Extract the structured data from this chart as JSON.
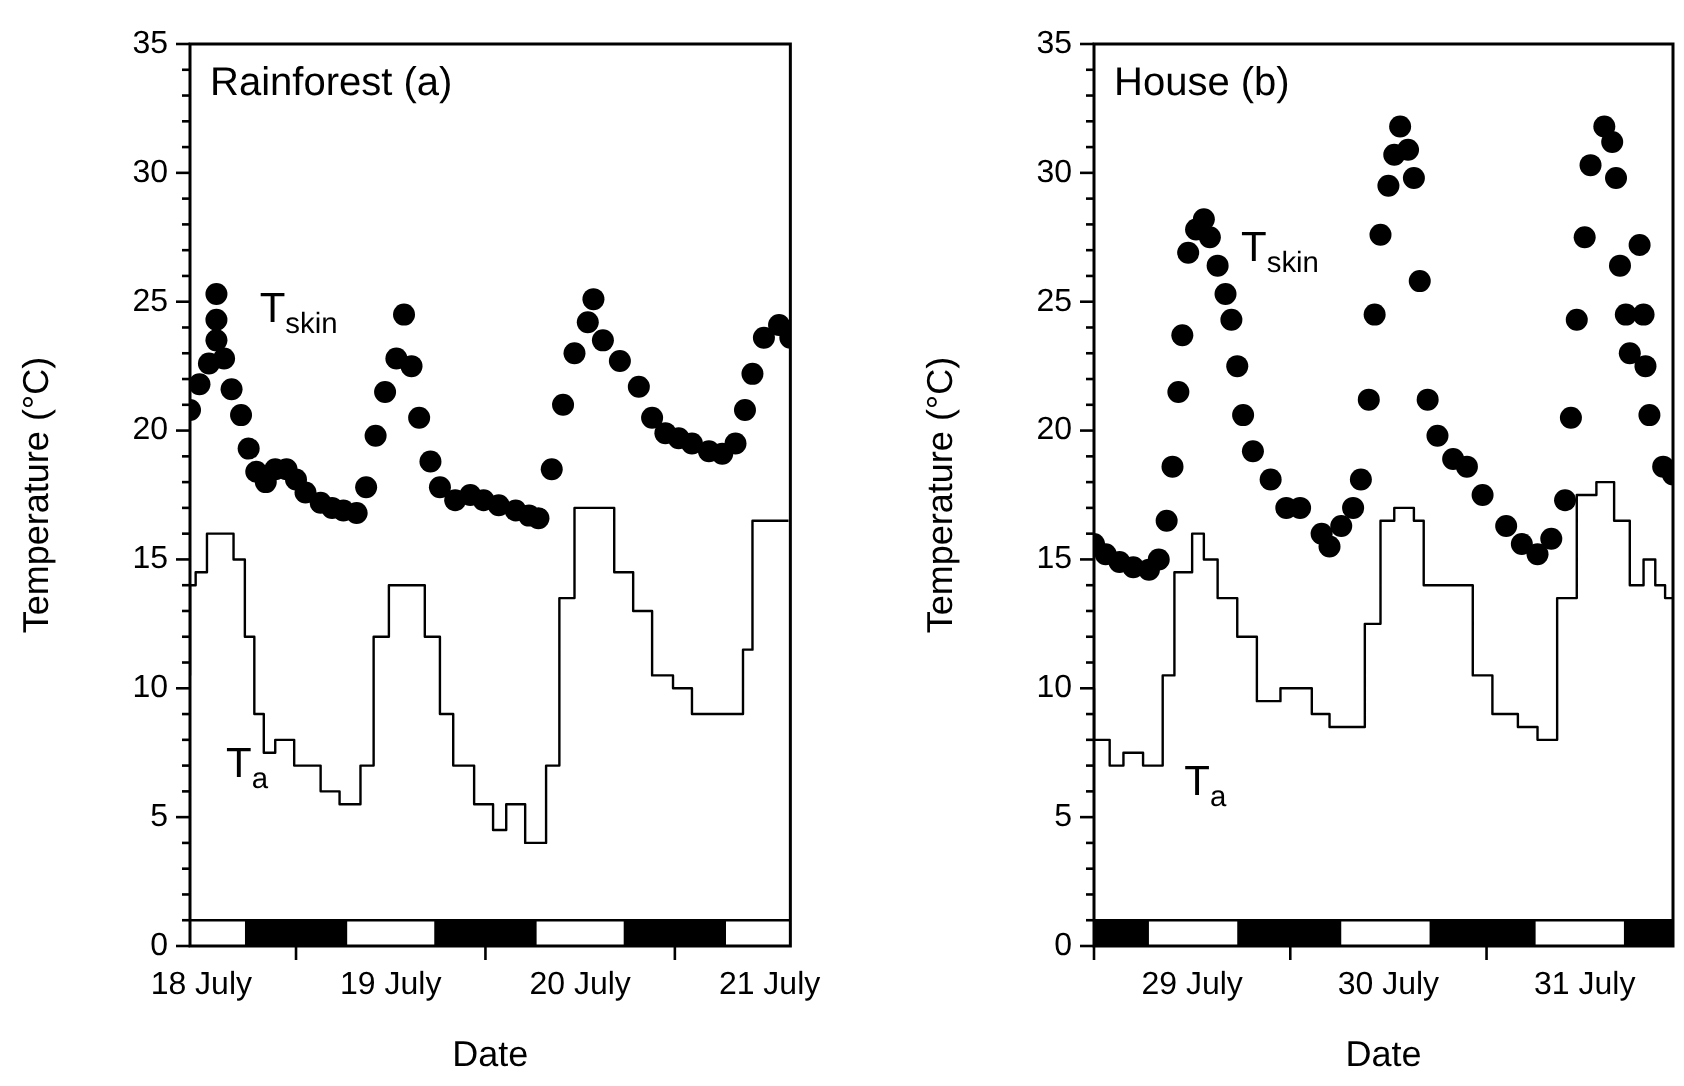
{
  "chart_data": [
    {
      "type": "scatter",
      "title": "Rainforest (a)",
      "xlabel": "Date",
      "ylabel": "Temperature (°C)",
      "xlim": [
        "--07-18T10:34",
        "--07-21T14:38"
      ],
      "xticks": [
        {
          "value": "--07-18T12:00",
          "label": "18 July"
        },
        {
          "value": "--07-19",
          "label": null
        },
        {
          "value": "--07-19T12:00",
          "label": "19 July"
        },
        {
          "value": "--07-20",
          "label": null
        },
        {
          "value": "--07-20T12:00",
          "label": "20 July"
        },
        {
          "value": "--07-21",
          "label": null
        },
        {
          "value": "--07-21T12:00",
          "label": "21 July"
        }
      ],
      "ylim": [
        0,
        35
      ],
      "yticks": [
        0,
        {
          "value": 1,
          "label": null
        },
        {
          "value": 2,
          "label": null
        },
        {
          "value": 3,
          "label": null
        },
        {
          "value": 4,
          "label": null
        },
        5,
        {
          "value": 6,
          "label": null
        },
        {
          "value": 7,
          "label": null
        },
        {
          "value": 8,
          "label": null
        },
        {
          "value": 9,
          "label": null
        },
        10,
        {
          "value": 11,
          "label": null
        },
        {
          "value": 12,
          "label": null
        },
        {
          "value": 13,
          "label": null
        },
        {
          "value": 14,
          "label": null
        },
        15,
        {
          "value": 16,
          "label": null
        },
        {
          "value": 17,
          "label": null
        },
        {
          "value": 18,
          "label": null
        },
        {
          "value": 19,
          "label": null
        },
        20,
        {
          "value": 21,
          "label": null
        },
        {
          "value": 22,
          "label": null
        },
        {
          "value": 23,
          "label": null
        },
        {
          "value": 24,
          "label": null
        },
        25,
        {
          "value": 26,
          "label": null
        },
        {
          "value": 27,
          "label": null
        },
        {
          "value": 28,
          "label": null
        },
        {
          "value": 29,
          "label": null
        },
        30,
        {
          "value": 31,
          "label": null
        },
        {
          "value": 32,
          "label": null
        },
        {
          "value": 33,
          "label": null
        },
        {
          "value": 34,
          "label": null
        },
        35
      ],
      "grid": false,
      "legend": false,
      "ref_lines": [
        {
          "axis": "y",
          "value": 1,
          "color": "#000000"
        }
      ],
      "series": [
        {
          "type": "area",
          "color": "#000000",
          "x": [
            "--07-18T17:31",
            "--07-18T17:31",
            "--07-19T06:29",
            "--07-19T06:29",
            "--07-19T17:31",
            "--07-19T17:31",
            "--07-20T06:29",
            "--07-20T06:29",
            "--07-20T17:31",
            "--07-20T17:31",
            "--07-21T06:29",
            "--07-21T06:29"
          ],
          "values": [
            0,
            1,
            1,
            0,
            0,
            1,
            1,
            0,
            0,
            1,
            1,
            0
          ]
        },
        {
          "name": "T$_{skin}$",
          "marker": "circle",
          "color": "#000000",
          "x": [
            "--07-18T10:34",
            "--07-18T11:46",
            "--07-18T12:58",
            "--07-18T13:55",
            "--07-18T13:55",
            "--07-18T13:55",
            "--07-18T14:53",
            "--07-18T15:50",
            "--07-18T17:02",
            "--07-18T18:00",
            "--07-18T18:58",
            "--07-18T20:10",
            "--07-18T21:22",
            "--07-18T22:48",
            "--07-19T00:00",
            "--07-19T01:12",
            "--07-19T03:07",
            "--07-19T04:34",
            "--07-19T06:00",
            "--07-19T07:41",
            "--07-19T08:53",
            "--07-19T10:05",
            "--07-19T11:17",
            "--07-19T12:43",
            "--07-19T13:41",
            "--07-19T14:38",
            "--07-19T15:36",
            "--07-19T17:02",
            "--07-19T18:14",
            "--07-19T20:10",
            "--07-19T22:05",
            "--07-19T23:46",
            "--07-20T01:41",
            "--07-20T03:50",
            "--07-20T05:31",
            "--07-20T06:43",
            "--07-20T08:24",
            "--07-20T09:50",
            "--07-20T11:17",
            "--07-20T12:58",
            "--07-20T13:41",
            "--07-20T14:53",
            "--07-20T17:02",
            "--07-20T19:26",
            "--07-20T21:07",
            "--07-20T22:48",
            "--07-21T00:29",
            "--07-21T02:10",
            "--07-21T04:19",
            "--07-21T06:00",
            "--07-21T07:41",
            "--07-21T08:53",
            "--07-21T09:50",
            "--07-21T11:17",
            "--07-21T13:12",
            "--07-21T14:38"
          ],
          "values": [
            20.8,
            21.8,
            22.6,
            23.5,
            24.3,
            25.3,
            22.8,
            21.6,
            20.6,
            19.3,
            18.4,
            18.0,
            18.5,
            18.5,
            18.1,
            17.6,
            17.2,
            17.0,
            16.9,
            16.8,
            17.8,
            19.8,
            21.5,
            22.8,
            24.5,
            22.5,
            20.5,
            18.8,
            17.8,
            17.3,
            17.5,
            17.3,
            17.1,
            16.9,
            16.7,
            16.6,
            18.5,
            21.0,
            23.0,
            24.2,
            25.1,
            23.5,
            22.7,
            21.7,
            20.5,
            19.9,
            19.7,
            19.5,
            19.2,
            19.1,
            19.5,
            20.8,
            22.2,
            23.6,
            24.1,
            23.6
          ]
        },
        {
          "name": "T$_{a}$",
          "type": "step",
          "marker": "none",
          "color": "#000000",
          "x": [
            "--07-18T10:34",
            "--07-18T11:17",
            "--07-18T12:43",
            "--07-18T14:24",
            "--07-18T16:05",
            "--07-18T17:31",
            "--07-18T18:43",
            "--07-18T19:55",
            "--07-18T21:22",
            "--07-18T23:46",
            "--07-19T03:07",
            "--07-19T05:31",
            "--07-19T08:10",
            "--07-19T09:50",
            "--07-19T11:46",
            "--07-19T13:41",
            "--07-19T16:19",
            "--07-19T18:14",
            "--07-19T19:55",
            "--07-19T22:34",
            "--07-20T00:58",
            "--07-20T02:38",
            "--07-20T05:02",
            "--07-20T07:41",
            "--07-20T09:22",
            "--07-20T11:17",
            "--07-20T14:24",
            "--07-20T16:19",
            "--07-20T18:43",
            "--07-20T21:07",
            "--07-20T23:46",
            "--07-21T02:10",
            "--07-21T04:48",
            "--07-21T08:38",
            "--07-21T09:50",
            "--07-21T11:46",
            "--07-21T14:24"
          ],
          "values": [
            10.5,
            14,
            14.5,
            16,
            16,
            15,
            12,
            9,
            7.5,
            8,
            7,
            6,
            5.5,
            7,
            12,
            14,
            14,
            12,
            9,
            7,
            5.5,
            4.5,
            5.5,
            4,
            7,
            13.5,
            17,
            17,
            14.5,
            13,
            10.5,
            10,
            9,
            9,
            11.5,
            16.5,
            16.5
          ]
        }
      ]
    },
    {
      "type": "scatter",
      "title": "House (b)",
      "xlabel": "Date",
      "ylabel": "Temperature (°C)",
      "xlim": [
        "--07-29T00:00",
        "--07-31T22:48"
      ],
      "xticks": [
        {
          "value": "--07-29",
          "label": null
        },
        {
          "value": "--07-29T12:00",
          "label": "29 July"
        },
        {
          "value": "--07-30",
          "label": null
        },
        {
          "value": "--07-30T12:00",
          "label": "30 July"
        },
        {
          "value": "--07-31",
          "label": null
        },
        {
          "value": "--07-31T12:00",
          "label": "31 July"
        }
      ],
      "ylim": [
        0,
        35
      ],
      "yticks": [
        0,
        {
          "value": 1,
          "label": null
        },
        {
          "value": 2,
          "label": null
        },
        {
          "value": 3,
          "label": null
        },
        {
          "value": 4,
          "label": null
        },
        5,
        {
          "value": 6,
          "label": null
        },
        {
          "value": 7,
          "label": null
        },
        {
          "value": 8,
          "label": null
        },
        {
          "value": 9,
          "label": null
        },
        10,
        {
          "value": 11,
          "label": null
        },
        {
          "value": 12,
          "label": null
        },
        {
          "value": 13,
          "label": null
        },
        {
          "value": 14,
          "label": null
        },
        15,
        {
          "value": 16,
          "label": null
        },
        {
          "value": 17,
          "label": null
        },
        {
          "value": 18,
          "label": null
        },
        {
          "value": 19,
          "label": null
        },
        20,
        {
          "value": 21,
          "label": null
        },
        {
          "value": 22,
          "label": null
        },
        {
          "value": 23,
          "label": null
        },
        {
          "value": 24,
          "label": null
        },
        25,
        {
          "value": 26,
          "label": null
        },
        {
          "value": 27,
          "label": null
        },
        {
          "value": 28,
          "label": null
        },
        {
          "value": 29,
          "label": null
        },
        30,
        {
          "value": 31,
          "label": null
        },
        {
          "value": 32,
          "label": null
        },
        {
          "value": 33,
          "label": null
        },
        {
          "value": 34,
          "label": null
        },
        35
      ],
      "grid": false,
      "legend": false,
      "ref_lines": [
        {
          "axis": "y",
          "value": 1,
          "color": "#000000"
        }
      ],
      "series": [
        {
          "type": "area",
          "color": "#000000",
          "x": [
            "--07-29T00:00",
            "--07-29T06:43",
            "--07-29T06:43",
            "--07-29T17:31",
            "--07-29T17:31",
            "--07-30T06:14",
            "--07-30T06:14",
            "--07-30T17:02",
            "--07-30T17:02",
            "--07-31T06:00",
            "--07-31T06:00",
            "--07-31T16:48",
            "--07-31T16:48",
            "--07-31T22:48"
          ],
          "values": [
            1,
            1,
            0,
            0,
            1,
            1,
            0,
            0,
            1,
            1,
            0,
            0,
            1,
            1
          ]
        },
        {
          "name": "T$_{skin}$",
          "marker": "circle",
          "color": "#000000",
          "x": [
            "--07-29T00:00",
            "--07-29T01:26",
            "--07-29T03:07",
            "--07-29T04:48",
            "--07-29T06:43",
            "--07-29T07:55",
            "--07-29T08:53",
            "--07-29T09:36",
            "--07-29T10:19",
            "--07-29T10:48",
            "--07-29T11:31",
            "--07-29T12:29",
            "--07-29T13:26",
            "--07-29T14:10",
            "--07-29T15:07",
            "--07-29T16:05",
            "--07-29T16:48",
            "--07-29T17:31",
            "--07-29T18:14",
            "--07-29T19:26",
            "--07-29T21:36",
            "--07-29T23:31",
            "--07-30T01:12",
            "--07-30T03:50",
            "--07-30T04:48",
            "--07-30T06:14",
            "--07-30T07:41",
            "--07-30T08:38",
            "--07-30T09:36",
            "--07-30T10:19",
            "--07-30T11:02",
            "--07-30T12:00",
            "--07-30T12:43",
            "--07-30T13:26",
            "--07-30T14:24",
            "--07-30T15:07",
            "--07-30T15:50",
            "--07-30T16:48",
            "--07-30T18:00",
            "--07-30T19:55",
            "--07-30T21:36",
            "--07-30T23:31",
            "--07-31T02:24",
            "--07-31T04:19",
            "--07-31T06:14",
            "--07-31T07:55",
            "--07-31T09:36",
            "--07-31T10:19",
            "--07-31T11:02",
            "--07-31T12:00",
            "--07-31T12:43",
            "--07-31T14:24",
            "--07-31T15:22",
            "--07-31T15:50",
            "--07-31T16:19",
            "--07-31T17:02",
            "--07-31T17:31",
            "--07-31T18:43",
            "--07-31T19:12",
            "--07-31T19:26",
            "--07-31T19:55",
            "--07-31T21:36",
            "--07-31T22:48"
          ],
          "values": [
            15.6,
            15.2,
            14.9,
            14.7,
            14.6,
            15.0,
            16.5,
            18.6,
            21.5,
            23.7,
            26.9,
            27.8,
            28.2,
            27.5,
            26.4,
            25.3,
            24.3,
            22.5,
            20.6,
            19.2,
            18.1,
            17.0,
            17.0,
            16.0,
            15.5,
            16.3,
            17.0,
            18.1,
            21.2,
            24.5,
            27.6,
            29.5,
            30.7,
            31.8,
            30.9,
            29.8,
            25.8,
            21.2,
            19.8,
            18.9,
            18.6,
            17.5,
            16.3,
            15.6,
            15.2,
            15.8,
            17.3,
            20.5,
            24.3,
            27.5,
            30.3,
            31.8,
            31.2,
            29.8,
            26.4,
            24.5,
            23.0,
            27.2,
            24.5,
            22.5,
            20.6,
            18.6,
            18.3
          ]
        },
        {
          "name": "T$_{a}$",
          "type": "step",
          "marker": "none",
          "color": "#000000",
          "x": [
            "--07-29T00:00",
            "--07-29T01:55",
            "--07-29T03:36",
            "--07-29T06:00",
            "--07-29T08:24",
            "--07-29T09:50",
            "--07-29T12:00",
            "--07-29T13:26",
            "--07-29T15:07",
            "--07-29T17:31",
            "--07-29T19:55",
            "--07-29T22:48",
            "--07-30T00:43",
            "--07-30T02:38",
            "--07-30T04:48",
            "--07-30T06:14",
            "--07-30T09:07",
            "--07-30T11:02",
            "--07-30T12:43",
            "--07-30T15:07",
            "--07-30T16:19",
            "--07-30T18:14",
            "--07-30T22:19",
            "--07-31T00:43",
            "--07-31T03:50",
            "--07-31T06:14",
            "--07-31T08:38",
            "--07-31T11:02",
            "--07-31T13:26",
            "--07-31T15:36",
            "--07-31T17:31",
            "--07-31T19:12",
            "--07-31T20:38",
            "--07-31T21:50",
            "--07-31T22:48"
          ],
          "values": [
            10,
            8,
            7,
            7.5,
            7,
            10.5,
            14.5,
            16,
            15,
            13.5,
            12,
            9.5,
            10,
            10,
            9,
            8.5,
            8.5,
            12.5,
            16.5,
            17,
            16.5,
            14,
            14,
            10.5,
            9,
            8.5,
            8,
            13.5,
            17.5,
            18,
            16.5,
            14,
            15,
            14,
            13.5
          ]
        }
      ]
    }
  ]
}
